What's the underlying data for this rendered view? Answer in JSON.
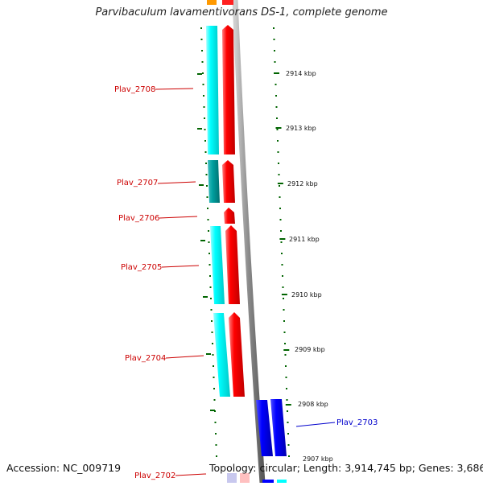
{
  "header": {
    "title": "Parvibaculum lavamentivorans DS-1, complete genome"
  },
  "footer": {
    "accession": "Accession: NC_009719",
    "summary": "Topology: circular; Length: 3,914,745 bp; Genes: 3,686"
  },
  "colors": {
    "cds_forward": "#ff0000",
    "cds_reverse": "#0000ff",
    "orf_cyan": "#00ffff",
    "orf_teal": "#00a0a0",
    "backbone": "#888888",
    "tick_green": "#006400",
    "label_forward": "#cc0000",
    "label_reverse": "#0000cc",
    "label_kbp": "#111111"
  },
  "scale": {
    "unit": "kbp",
    "labels": [
      "2914 kbp",
      "2913 kbp",
      "2912 kbp",
      "2911 kbp",
      "2910 kbp",
      "2909 kbp",
      "2908 kbp",
      "2907 kbp"
    ]
  },
  "genes": [
    {
      "label": "Plav_2708",
      "strand": "forward"
    },
    {
      "label": "Plav_2707",
      "strand": "forward"
    },
    {
      "label": "Plav_2706",
      "strand": "forward"
    },
    {
      "label": "Plav_2705",
      "strand": "forward"
    },
    {
      "label": "Plav_2704",
      "strand": "forward"
    },
    {
      "label": "Plav_2703",
      "strand": "reverse"
    },
    {
      "label": "Plav_2702",
      "strand": "forward"
    }
  ]
}
